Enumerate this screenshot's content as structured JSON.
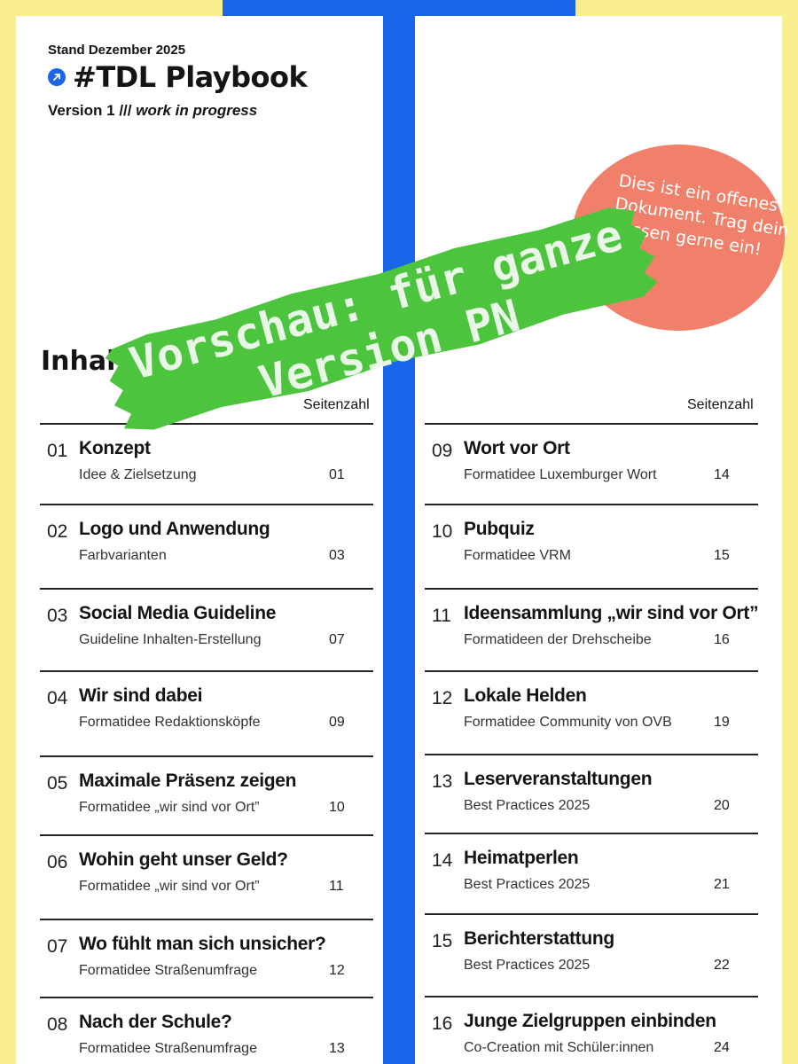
{
  "header": {
    "stand": "Stand Dezember 2025",
    "title": "#TDL Playbook",
    "version_label": "Version 1 ///",
    "version_note": "work in progress"
  },
  "toc_heading": "Inhalt",
  "page_column_label": "Seitenzahl",
  "note_circle": {
    "text": "Dies ist ein offenes Dokument. Trag dein Wissen gerne ein!"
  },
  "preview_banner": {
    "line1": "Vorschau: für ganze",
    "line2": "Version PN"
  },
  "toc_left": [
    {
      "num": "01",
      "title": "Konzept",
      "subtitle": "Idee & Zielsetzung",
      "page": "01"
    },
    {
      "num": "02",
      "title": "Logo und Anwendung",
      "subtitle": "Farbvarianten",
      "page": "03"
    },
    {
      "num": "03",
      "title": "Social Media Guideline",
      "subtitle": "Guideline Inhalten-Erstellung",
      "page": "07"
    },
    {
      "num": "04",
      "title": "Wir sind dabei",
      "subtitle": "Formatidee Redaktionsköpfe",
      "page": "09"
    },
    {
      "num": "05",
      "title": "Maximale Präsenz zeigen",
      "subtitle": "Formatidee „wir sind vor Ort”",
      "page": "10"
    },
    {
      "num": "06",
      "title": "Wohin geht unser Geld?",
      "subtitle": "Formatidee „wir sind vor Ort”",
      "page": "11"
    },
    {
      "num": "07",
      "title": "Wo fühlt man sich unsicher?",
      "subtitle": "Formatidee Straßenumfrage",
      "page": "12"
    },
    {
      "num": "08",
      "title": "Nach der Schule?",
      "subtitle": "Formatidee Straßenumfrage",
      "page": "13"
    }
  ],
  "toc_right": [
    {
      "num": "09",
      "title": "Wort vor Ort",
      "subtitle": "Formatidee Luxemburger Wort",
      "page": "14"
    },
    {
      "num": "10",
      "title": "Pubquiz",
      "subtitle": "Formatidee VRM",
      "page": "15"
    },
    {
      "num": "11",
      "title": "Ideensammlung „wir sind vor Ort”",
      "subtitle": "Formatideen der Drehscheibe",
      "page": "16"
    },
    {
      "num": "12",
      "title": "Lokale Helden",
      "subtitle": "Formatidee Community von OVB",
      "page": "19"
    },
    {
      "num": "13",
      "title": "Leserveranstaltungen",
      "subtitle": "Best Practices 2025",
      "page": "20"
    },
    {
      "num": "14",
      "title": "Heimatperlen",
      "subtitle": "Best Practices 2025",
      "page": "21"
    },
    {
      "num": "15",
      "title": "Berichterstattung",
      "subtitle": "Best Practices 2025",
      "page": "22"
    },
    {
      "num": "16",
      "title": "Junge Zielgruppen einbinden",
      "subtitle": "Co-Creation mit Schüler:innen",
      "page": "24"
    }
  ],
  "colors": {
    "background_yellow": "#f9ef8e",
    "accent_blue": "#1967e8",
    "circle_coral": "#f0806a",
    "banner_green": "#4cc43e"
  }
}
